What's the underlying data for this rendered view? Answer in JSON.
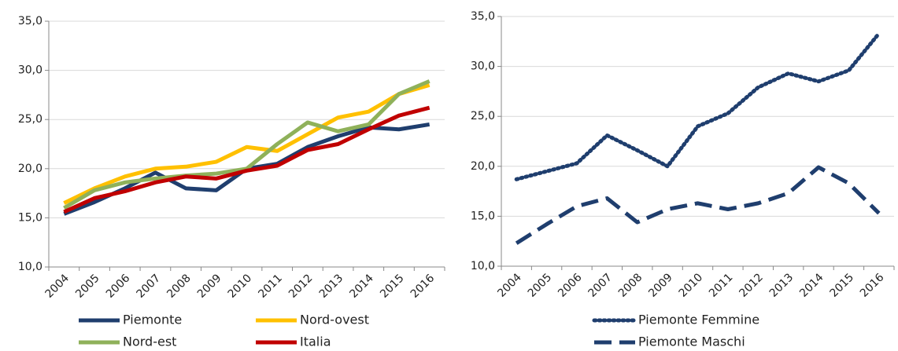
{
  "chart_data": [
    {
      "type": "line",
      "categories": [
        "2004",
        "2005",
        "2006",
        "2007",
        "2008",
        "2009",
        "2010",
        "2011",
        "2012",
        "2013",
        "2014",
        "2015",
        "2016"
      ],
      "series": [
        {
          "name": "Piemonte",
          "color": "#1f3e6e",
          "line_style": "solid",
          "values": [
            15.4,
            16.6,
            18.0,
            19.6,
            18.0,
            17.8,
            20.0,
            20.5,
            22.2,
            23.3,
            24.2,
            24.0,
            24.5
          ]
        },
        {
          "name": "Nord-ovest",
          "color": "#ffc000",
          "line_style": "solid",
          "values": [
            16.5,
            18.0,
            19.2,
            20.0,
            20.2,
            20.7,
            22.2,
            21.8,
            23.5,
            25.2,
            25.8,
            27.6,
            28.5
          ]
        },
        {
          "name": "Nord-est",
          "color": "#8fb15a",
          "line_style": "solid",
          "values": [
            16.0,
            17.8,
            18.6,
            19.0,
            19.3,
            19.5,
            20.0,
            22.5,
            24.7,
            23.8,
            24.5,
            27.6,
            28.9
          ]
        },
        {
          "name": "Italia",
          "color": "#c00000",
          "line_style": "solid",
          "values": [
            15.6,
            17.0,
            17.7,
            18.6,
            19.2,
            19.0,
            19.8,
            20.3,
            21.9,
            22.5,
            24.0,
            25.4,
            26.2
          ]
        }
      ],
      "ylim": [
        10,
        35
      ],
      "yticks": [
        {
          "value": 10,
          "label": "10,0"
        },
        {
          "value": 15,
          "label": "15,0"
        },
        {
          "value": 20,
          "label": "20,0"
        },
        {
          "value": 25,
          "label": "25,0"
        },
        {
          "value": 30,
          "label": "30,0"
        },
        {
          "value": 35,
          "label": "35,0"
        }
      ],
      "grid": true,
      "legend": "bottom"
    },
    {
      "type": "line",
      "categories": [
        "2004",
        "2005",
        "2006",
        "2007",
        "2008",
        "2009",
        "2010",
        "2011",
        "2012",
        "2013",
        "2014",
        "2015",
        "2016"
      ],
      "series": [
        {
          "name": "Piemonte Femmine",
          "color": "#1f3e6e",
          "line_style": "dotted",
          "values": [
            18.7,
            19.5,
            20.3,
            23.1,
            21.6,
            20.0,
            24.0,
            25.3,
            27.9,
            29.3,
            28.5,
            29.6,
            33.3
          ]
        },
        {
          "name": "Piemonte Maschi",
          "color": "#1f3e6e",
          "line_style": "dashed",
          "values": [
            12.3,
            14.2,
            16.0,
            16.8,
            14.4,
            15.7,
            16.3,
            15.7,
            16.3,
            17.3,
            19.9,
            18.3,
            15.3
          ]
        }
      ],
      "ylim": [
        10,
        35
      ],
      "yticks": [
        {
          "value": 10,
          "label": "10,0"
        },
        {
          "value": 15,
          "label": "15,0"
        },
        {
          "value": 20,
          "label": "20,0"
        },
        {
          "value": 25,
          "label": "25,0"
        },
        {
          "value": 30,
          "label": "30,0"
        },
        {
          "value": 35,
          "label": "35,0"
        }
      ],
      "grid": true,
      "legend": "bottom"
    }
  ]
}
